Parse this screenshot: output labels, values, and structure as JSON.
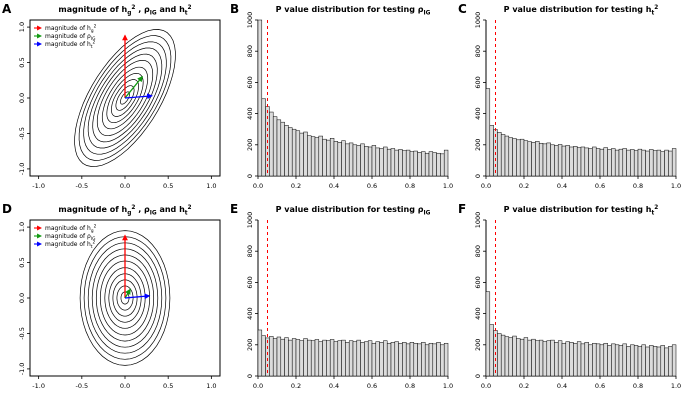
{
  "figure": {
    "background": "#ffffff"
  },
  "chart_data": [
    {
      "panel_label": "A",
      "type": "contour",
      "title": "magnitude of h_g^2 , rho_IG and h_t^2",
      "title_segments": [
        {
          "t": "magnitude of h"
        },
        {
          "t": "g",
          "sub": true
        },
        {
          "t": "2",
          "sup": true
        },
        {
          "t": " , ρ"
        },
        {
          "t": "IG",
          "sub": true
        },
        {
          "t": " and h"
        },
        {
          "t": "t",
          "sub": true
        },
        {
          "t": "2",
          "sup": true
        }
      ],
      "xlim": [
        -1.1,
        1.1
      ],
      "ylim": [
        -1.1,
        1.1
      ],
      "xticks": [
        -1.0,
        -0.5,
        0.0,
        0.5,
        1.0
      ],
      "xtick_labels": [
        "-1.0",
        "-0.5",
        "0.0",
        "0.5",
        "1.0"
      ],
      "yticks": [
        -1.0,
        -0.5,
        0.0,
        0.5,
        1.0
      ],
      "ytick_labels": [
        "-1.0",
        "-0.5",
        "0.0",
        "0.5",
        "1.0"
      ],
      "ellipses": {
        "cx": 0,
        "cy": 0,
        "a": 1.05,
        "b": 0.42,
        "angle_deg": 65,
        "levels": [
          0.09,
          0.18,
          0.27,
          0.36,
          0.45,
          0.55,
          0.64,
          0.73,
          0.82,
          0.91,
          1.0
        ]
      },
      "arrows": [
        {
          "name": "magnitude-of-hg2",
          "color": "#ff0000",
          "from": [
            0,
            0
          ],
          "to": [
            0,
            0.88
          ]
        },
        {
          "name": "magnitude-of-rhoIG",
          "color": "#119911",
          "from": [
            0,
            0
          ],
          "to": [
            0.2,
            0.3
          ]
        },
        {
          "name": "magnitude-of-ht2",
          "color": "#0000ff",
          "from": [
            0,
            0
          ],
          "to": [
            0.31,
            0.03
          ]
        }
      ],
      "legend": [
        {
          "color": "#ff0000",
          "segments": [
            {
              "t": "magnitude of h"
            },
            {
              "t": "g",
              "sub": true
            },
            {
              "t": "2",
              "sup": true
            }
          ]
        },
        {
          "color": "#119911",
          "segments": [
            {
              "t": "magnitude of ρ"
            },
            {
              "t": "IG",
              "sub": true
            }
          ]
        },
        {
          "color": "#0000ff",
          "segments": [
            {
              "t": "magnitude of h"
            },
            {
              "t": "t",
              "sub": true
            },
            {
              "t": "2",
              "sup": true
            }
          ]
        }
      ]
    },
    {
      "panel_label": "B",
      "type": "bar",
      "title": "P value distribution for testing rho_IG",
      "title_segments": [
        {
          "t": "P value distribution for testing  ρ"
        },
        {
          "t": "IG",
          "sub": true
        }
      ],
      "bin_start": 0,
      "bin_width": 0.02,
      "values": [
        1000,
        495,
        445,
        410,
        380,
        360,
        345,
        325,
        310,
        300,
        290,
        275,
        282,
        258,
        252,
        246,
        256,
        236,
        230,
        242,
        222,
        216,
        226,
        206,
        212,
        200,
        196,
        206,
        190,
        186,
        196,
        180,
        176,
        186,
        172,
        176,
        166,
        170,
        162,
        166,
        156,
        160,
        152,
        156,
        146,
        156,
        150,
        146,
        142,
        166
      ],
      "xlim": [
        0,
        1
      ],
      "ylim": [
        0,
        1000
      ],
      "xticks": [
        0,
        0.2,
        0.4,
        0.6,
        0.8,
        1.0
      ],
      "xtick_labels": [
        "0.0",
        "0.2",
        "0.4",
        "0.6",
        "0.8",
        "1.0"
      ],
      "yticks": [
        0,
        200,
        400,
        600,
        800,
        1000
      ],
      "ytick_labels": [
        "0",
        "200",
        "400",
        "600",
        "800",
        "1000"
      ],
      "vline": {
        "x": 0.05,
        "color": "#ff0000",
        "style": "dashed"
      },
      "bar_fill": "#dcdcdc",
      "bar_stroke": "#000000"
    },
    {
      "panel_label": "C",
      "type": "bar",
      "title": "P value distribution for testing h_t^2",
      "title_segments": [
        {
          "t": "P value distribution for testing h"
        },
        {
          "t": "t",
          "sub": true
        },
        {
          "t": "2",
          "sup": true
        }
      ],
      "bin_start": 0,
      "bin_width": 0.02,
      "values": [
        560,
        325,
        298,
        280,
        266,
        256,
        246,
        240,
        232,
        236,
        226,
        220,
        216,
        222,
        210,
        206,
        212,
        200,
        196,
        202,
        192,
        196,
        186,
        190,
        182,
        186,
        180,
        176,
        186,
        176,
        172,
        182,
        170,
        176,
        166,
        172,
        176,
        166,
        170,
        162,
        172,
        166,
        160,
        170,
        162,
        166,
        156,
        166,
        160,
        176
      ],
      "xlim": [
        0,
        1
      ],
      "ylim": [
        0,
        1000
      ],
      "xticks": [
        0,
        0.2,
        0.4,
        0.6,
        0.8,
        1.0
      ],
      "xtick_labels": [
        "0.0",
        "0.2",
        "0.4",
        "0.6",
        "0.8",
        "1.0"
      ],
      "yticks": [
        0,
        200,
        400,
        600,
        800,
        1000
      ],
      "ytick_labels": [
        "0",
        "200",
        "400",
        "600",
        "800",
        "1000"
      ],
      "vline": {
        "x": 0.05,
        "color": "#ff0000",
        "style": "dashed"
      },
      "bar_fill": "#dcdcdc",
      "bar_stroke": "#000000"
    },
    {
      "panel_label": "D",
      "type": "contour",
      "title": "magnitude of h_g^2 , rho_IG and h_t^2",
      "title_segments": [
        {
          "t": "magnitude of h"
        },
        {
          "t": "g",
          "sub": true
        },
        {
          "t": "2",
          "sup": true
        },
        {
          "t": " , ρ"
        },
        {
          "t": "IG",
          "sub": true
        },
        {
          "t": " and h"
        },
        {
          "t": "t",
          "sub": true
        },
        {
          "t": "2",
          "sup": true
        }
      ],
      "xlim": [
        -1.1,
        1.1
      ],
      "ylim": [
        -1.1,
        1.1
      ],
      "xticks": [
        -1.0,
        -0.5,
        0.0,
        0.5,
        1.0
      ],
      "xtick_labels": [
        "-1.0",
        "-0.5",
        "0.0",
        "0.5",
        "1.0"
      ],
      "yticks": [
        -1.0,
        -0.5,
        0.0,
        0.5,
        1.0
      ],
      "ytick_labels": [
        "-1.0",
        "-0.5",
        "0.0",
        "0.5",
        "1.0"
      ],
      "ellipses": {
        "cx": 0,
        "cy": 0,
        "a": 0.95,
        "b": 0.52,
        "angle_deg": 90,
        "levels": [
          0.09,
          0.18,
          0.27,
          0.36,
          0.45,
          0.55,
          0.64,
          0.73,
          0.82,
          0.91,
          1.0
        ]
      },
      "arrows": [
        {
          "name": "magnitude-of-hg2",
          "color": "#ff0000",
          "from": [
            0,
            0
          ],
          "to": [
            0,
            0.88
          ]
        },
        {
          "name": "magnitude-of-rhoIG",
          "color": "#119911",
          "from": [
            0,
            0
          ],
          "to": [
            0.06,
            0.12
          ]
        },
        {
          "name": "magnitude-of-ht2",
          "color": "#0000ff",
          "from": [
            0,
            0
          ],
          "to": [
            0.28,
            0.03
          ]
        }
      ],
      "legend": [
        {
          "color": "#ff0000",
          "segments": [
            {
              "t": "magnitude of h"
            },
            {
              "t": "g",
              "sub": true
            },
            {
              "t": "2",
              "sup": true
            }
          ]
        },
        {
          "color": "#119911",
          "segments": [
            {
              "t": "magnitude of ρ"
            },
            {
              "t": "IG",
              "sub": true
            }
          ]
        },
        {
          "color": "#0000ff",
          "segments": [
            {
              "t": "magnitude of h"
            },
            {
              "t": "t",
              "sub": true
            },
            {
              "t": "2",
              "sup": true
            }
          ]
        }
      ]
    },
    {
      "panel_label": "E",
      "type": "bar",
      "title": "P value distribution for testing rho_IG",
      "title_segments": [
        {
          "t": "P value distribution for testing  ρ"
        },
        {
          "t": "IG",
          "sub": true
        }
      ],
      "bin_start": 0,
      "bin_width": 0.02,
      "values": [
        295,
        258,
        244,
        254,
        240,
        250,
        236,
        246,
        230,
        240,
        234,
        226,
        240,
        230,
        226,
        234,
        220,
        230,
        226,
        234,
        220,
        226,
        230,
        216,
        226,
        220,
        230,
        216,
        220,
        226,
        210,
        220,
        216,
        226,
        210,
        216,
        220,
        210,
        216,
        206,
        216,
        210,
        206,
        216,
        200,
        210,
        206,
        216,
        200,
        210
      ],
      "xlim": [
        0,
        1
      ],
      "ylim": [
        0,
        1000
      ],
      "xticks": [
        0,
        0.2,
        0.4,
        0.6,
        0.8,
        1.0
      ],
      "xtick_labels": [
        "0.0",
        "0.2",
        "0.4",
        "0.6",
        "0.8",
        "1.0"
      ],
      "yticks": [
        0,
        200,
        400,
        600,
        800,
        1000
      ],
      "ytick_labels": [
        "0",
        "200",
        "400",
        "600",
        "800",
        "1000"
      ],
      "vline": {
        "x": 0.05,
        "color": "#ff0000",
        "style": "dashed"
      },
      "bar_fill": "#dcdcdc",
      "bar_stroke": "#000000"
    },
    {
      "panel_label": "F",
      "type": "bar",
      "title": "P value distribution for testing h_t^2",
      "title_segments": [
        {
          "t": "P value distribution for testing h"
        },
        {
          "t": "t",
          "sub": true
        },
        {
          "t": "2",
          "sup": true
        }
      ],
      "bin_start": 0,
      "bin_width": 0.02,
      "values": [
        540,
        330,
        292,
        272,
        262,
        252,
        246,
        256,
        240,
        236,
        246,
        230,
        236,
        226,
        230,
        220,
        226,
        230,
        216,
        226,
        210,
        220,
        216,
        210,
        220,
        206,
        216,
        200,
        210,
        206,
        200,
        210,
        196,
        206,
        200,
        196,
        206,
        190,
        200,
        196,
        190,
        200,
        186,
        196,
        190,
        186,
        196,
        180,
        190,
        200
      ],
      "xlim": [
        0,
        1
      ],
      "ylim": [
        0,
        1000
      ],
      "xticks": [
        0,
        0.2,
        0.4,
        0.6,
        0.8,
        1.0
      ],
      "xtick_labels": [
        "0.0",
        "0.2",
        "0.4",
        "0.6",
        "0.8",
        "1.0"
      ],
      "yticks": [
        0,
        200,
        400,
        600,
        800,
        1000
      ],
      "ytick_labels": [
        "0",
        "200",
        "400",
        "600",
        "800",
        "1000"
      ],
      "vline": {
        "x": 0.05,
        "color": "#ff0000",
        "style": "dashed"
      },
      "bar_fill": "#dcdcdc",
      "bar_stroke": "#000000"
    }
  ]
}
